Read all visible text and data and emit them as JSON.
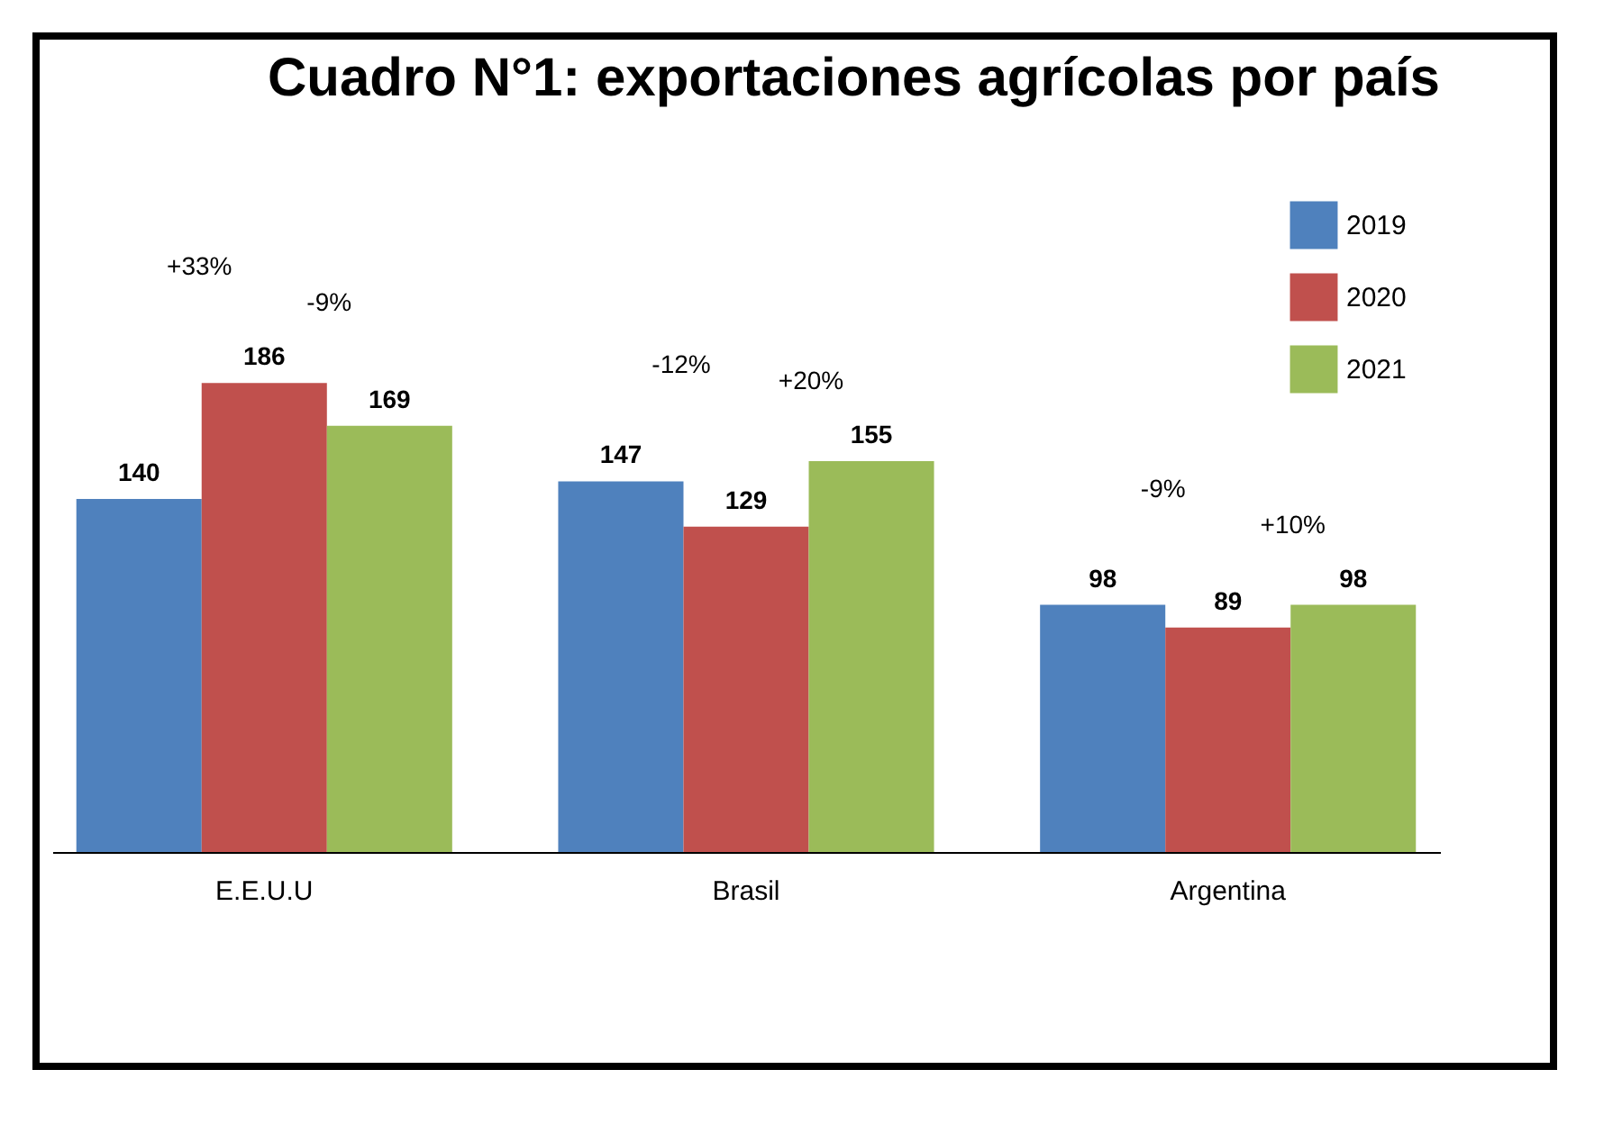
{
  "chart_data": {
    "type": "bar",
    "title": "Cuadro N°1: exportaciones agrícolas por país",
    "categories": [
      "E.E.U.U",
      "Brasil",
      "Argentina"
    ],
    "series": [
      {
        "name": "2019",
        "color": "#4f81bd",
        "values": [
          140,
          147,
          98
        ]
      },
      {
        "name": "2020",
        "color": "#c0504d",
        "values": [
          186,
          129,
          89
        ]
      },
      {
        "name": "2021",
        "color": "#9bbb59",
        "values": [
          169,
          155,
          98
        ]
      }
    ],
    "data_labels": true,
    "legend": "top right",
    "grid": false,
    "annotations": [
      "+33%",
      "-9%",
      "-12%",
      "+20%",
      "-9%",
      "+10%"
    ]
  }
}
